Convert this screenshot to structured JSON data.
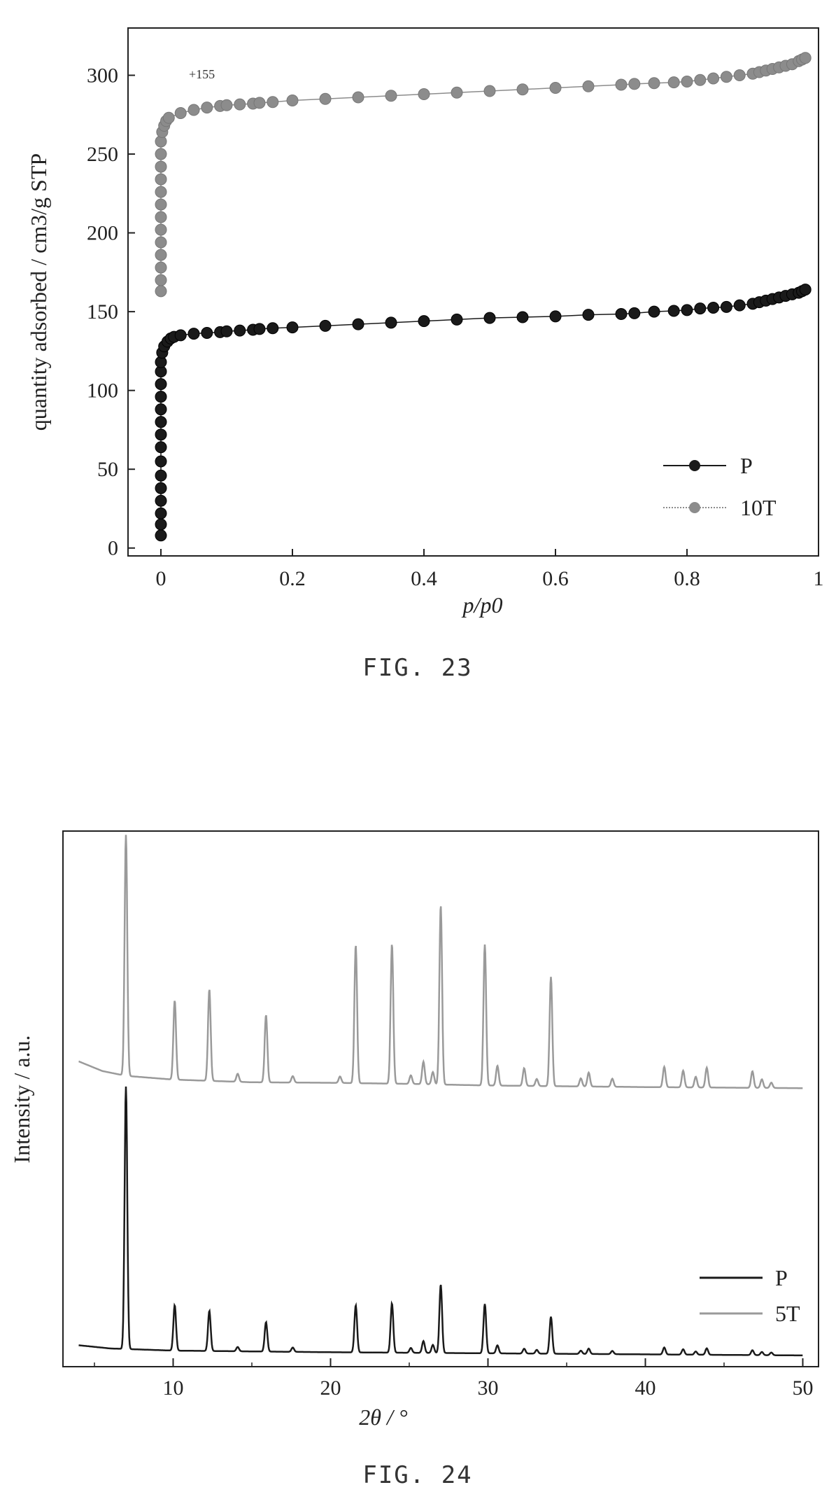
{
  "figures": [
    {
      "caption": "FIG. 23",
      "chart_data": {
        "type": "scatter",
        "xlabel": "p/p0",
        "ylabel": "quantity adsorbed / cm3/g STP",
        "xlim": [
          -0.05,
          1.0
        ],
        "ylim": [
          -5,
          330
        ],
        "xticks": [
          0,
          0.2,
          0.4,
          0.6,
          0.8,
          1
        ],
        "xtick_labels": [
          "0",
          "0.2",
          "0.4",
          "0.6",
          "0.8",
          "1"
        ],
        "yticks": [
          0,
          50,
          100,
          150,
          200,
          250,
          300
        ],
        "ytick_labels": [
          "0",
          "50",
          "100",
          "150",
          "200",
          "250",
          "300"
        ],
        "annotation": "+155",
        "legend_position": "bottom-right",
        "series": [
          {
            "name": "P",
            "color": "#1a1a1a",
            "points": [
              [
                0,
                8
              ],
              [
                0,
                15
              ],
              [
                0,
                22
              ],
              [
                0,
                30
              ],
              [
                0,
                38
              ],
              [
                0,
                46
              ],
              [
                0,
                55
              ],
              [
                0,
                64
              ],
              [
                0,
                72
              ],
              [
                0,
                80
              ],
              [
                0,
                88
              ],
              [
                0,
                96
              ],
              [
                0,
                104
              ],
              [
                0,
                112
              ],
              [
                0,
                118
              ],
              [
                0.002,
                124
              ],
              [
                0.005,
                128
              ],
              [
                0.01,
                131
              ],
              [
                0.015,
                133
              ],
              [
                0.02,
                134
              ],
              [
                0.03,
                135
              ],
              [
                0.05,
                136
              ],
              [
                0.07,
                136.5
              ],
              [
                0.09,
                137
              ],
              [
                0.1,
                137.5
              ],
              [
                0.12,
                138
              ],
              [
                0.14,
                138.5
              ],
              [
                0.15,
                139
              ],
              [
                0.17,
                139.5
              ],
              [
                0.2,
                140
              ],
              [
                0.25,
                141
              ],
              [
                0.3,
                142
              ],
              [
                0.35,
                143
              ],
              [
                0.4,
                144
              ],
              [
                0.45,
                145
              ],
              [
                0.5,
                146
              ],
              [
                0.55,
                146.5
              ],
              [
                0.6,
                147
              ],
              [
                0.65,
                148
              ],
              [
                0.7,
                148.5
              ],
              [
                0.72,
                149
              ],
              [
                0.75,
                150
              ],
              [
                0.78,
                150.5
              ],
              [
                0.8,
                151
              ],
              [
                0.82,
                152
              ],
              [
                0.84,
                152.5
              ],
              [
                0.86,
                153
              ],
              [
                0.88,
                154
              ],
              [
                0.9,
                155
              ],
              [
                0.91,
                156
              ],
              [
                0.92,
                157
              ],
              [
                0.93,
                158
              ],
              [
                0.94,
                159
              ],
              [
                0.95,
                160
              ],
              [
                0.96,
                161
              ],
              [
                0.97,
                162
              ],
              [
                0.975,
                163
              ],
              [
                0.98,
                164
              ]
            ]
          },
          {
            "name": "10T",
            "color": "#8c8c8c",
            "points": [
              [
                0,
                163
              ],
              [
                0,
                170
              ],
              [
                0,
                178
              ],
              [
                0,
                186
              ],
              [
                0,
                194
              ],
              [
                0,
                202
              ],
              [
                0,
                210
              ],
              [
                0,
                218
              ],
              [
                0,
                226
              ],
              [
                0,
                234
              ],
              [
                0,
                242
              ],
              [
                0,
                250
              ],
              [
                0,
                258
              ],
              [
                0.002,
                264
              ],
              [
                0.005,
                268
              ],
              [
                0.008,
                271
              ],
              [
                0.012,
                273
              ],
              [
                0.03,
                276
              ],
              [
                0.05,
                278
              ],
              [
                0.07,
                279.5
              ],
              [
                0.09,
                280.5
              ],
              [
                0.1,
                281
              ],
              [
                0.12,
                281.5
              ],
              [
                0.14,
                282
              ],
              [
                0.15,
                282.5
              ],
              [
                0.17,
                283
              ],
              [
                0.2,
                284
              ],
              [
                0.25,
                285
              ],
              [
                0.3,
                286
              ],
              [
                0.35,
                287
              ],
              [
                0.4,
                288
              ],
              [
                0.45,
                289
              ],
              [
                0.5,
                290
              ],
              [
                0.55,
                291
              ],
              [
                0.6,
                292
              ],
              [
                0.65,
                293
              ],
              [
                0.7,
                294
              ],
              [
                0.72,
                294.5
              ],
              [
                0.75,
                295
              ],
              [
                0.78,
                295.5
              ],
              [
                0.8,
                296
              ],
              [
                0.82,
                297
              ],
              [
                0.84,
                298
              ],
              [
                0.86,
                299
              ],
              [
                0.88,
                300
              ],
              [
                0.9,
                301
              ],
              [
                0.91,
                302
              ],
              [
                0.92,
                303
              ],
              [
                0.93,
                304
              ],
              [
                0.94,
                305
              ],
              [
                0.95,
                306
              ],
              [
                0.96,
                307
              ],
              [
                0.97,
                309
              ],
              [
                0.975,
                310
              ],
              [
                0.98,
                311
              ]
            ]
          }
        ]
      }
    },
    {
      "caption": "FIG. 24",
      "chart_data": {
        "type": "line",
        "xlabel": "2θ / °",
        "ylabel": "Intensity / a.u.",
        "xlim": [
          3,
          51
        ],
        "ylim": [
          0,
          100
        ],
        "xticks": [
          10,
          20,
          30,
          40,
          50
        ],
        "xtick_labels": [
          "10",
          "20",
          "30",
          "40",
          "50"
        ],
        "y_ticks_shown": false,
        "legend_position": "bottom-right",
        "peak_width": 0.12,
        "series": [
          {
            "name": "P",
            "color": "#1a1a1a",
            "baseline": [
              [
                4,
                4
              ],
              [
                6,
                3.4
              ],
              [
                10,
                3.0
              ],
              [
                20,
                2.7
              ],
              [
                30,
                2.5
              ],
              [
                40,
                2.3
              ],
              [
                50,
                2.1
              ]
            ],
            "peaks": [
              [
                7.0,
                49
              ],
              [
                10.1,
                8.5
              ],
              [
                12.3,
                7.5
              ],
              [
                14.1,
                0.8
              ],
              [
                15.9,
                5.5
              ],
              [
                17.6,
                0.8
              ],
              [
                21.6,
                8.8
              ],
              [
                23.9,
                9.2
              ],
              [
                25.1,
                0.9
              ],
              [
                25.9,
                2.2
              ],
              [
                26.5,
                1.5
              ],
              [
                27.0,
                12.8
              ],
              [
                29.8,
                9.2
              ],
              [
                30.6,
                1.5
              ],
              [
                32.3,
                0.9
              ],
              [
                33.1,
                0.7
              ],
              [
                34.0,
                6.9
              ],
              [
                35.9,
                0.6
              ],
              [
                36.4,
                1.0
              ],
              [
                37.9,
                0.6
              ],
              [
                41.2,
                1.3
              ],
              [
                42.4,
                1.0
              ],
              [
                43.2,
                0.6
              ],
              [
                43.9,
                1.2
              ],
              [
                46.8,
                0.9
              ],
              [
                47.4,
                0.6
              ],
              [
                48.0,
                0.5
              ]
            ]
          },
          {
            "name": "5T",
            "color": "#9a9a9a",
            "baseline": [
              [
                4,
                57
              ],
              [
                5.5,
                55.2
              ],
              [
                7,
                54.3
              ],
              [
                10,
                53.6
              ],
              [
                15,
                53.1
              ],
              [
                20,
                53.0
              ],
              [
                25,
                52.8
              ],
              [
                30,
                52.5
              ],
              [
                40,
                52.2
              ],
              [
                50,
                52.0
              ]
            ],
            "peaks": [
              [
                7.0,
                45
              ],
              [
                10.1,
                14.8
              ],
              [
                12.3,
                17.1
              ],
              [
                14.1,
                1.5
              ],
              [
                15.9,
                12.6
              ],
              [
                17.6,
                1.2
              ],
              [
                20.6,
                1.2
              ],
              [
                21.6,
                25.8
              ],
              [
                23.9,
                26.1
              ],
              [
                25.1,
                1.6
              ],
              [
                25.9,
                4.2
              ],
              [
                26.5,
                2.3
              ],
              [
                27.0,
                33.5
              ],
              [
                29.8,
                26.3
              ],
              [
                30.6,
                3.7
              ],
              [
                32.3,
                3.3
              ],
              [
                33.1,
                1.3
              ],
              [
                34.0,
                20.4
              ],
              [
                35.9,
                1.5
              ],
              [
                36.4,
                2.6
              ],
              [
                37.9,
                1.5
              ],
              [
                41.2,
                3.8
              ],
              [
                42.4,
                3.1
              ],
              [
                43.2,
                2.0
              ],
              [
                43.9,
                3.7
              ],
              [
                46.8,
                3.1
              ],
              [
                47.4,
                1.6
              ],
              [
                48.0,
                1.0
              ]
            ]
          }
        ]
      }
    }
  ]
}
